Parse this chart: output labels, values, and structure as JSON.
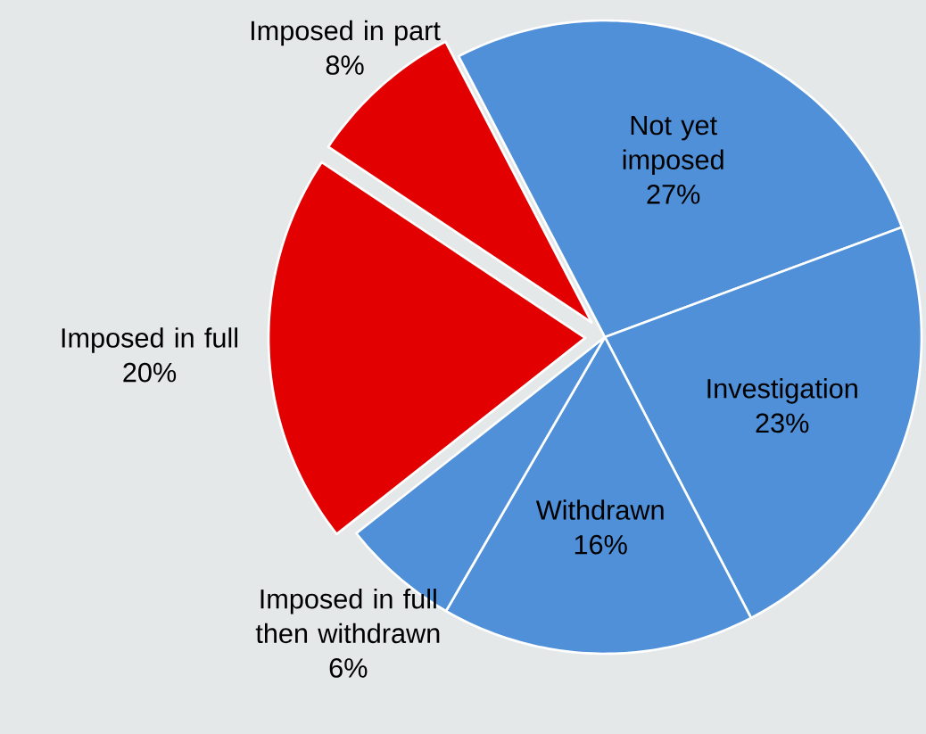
{
  "chart_data": {
    "type": "pie",
    "categories": [
      "Not yet imposed",
      "Investigation",
      "Withdrawn",
      "Imposed in full then withdrawn",
      "Imposed in full",
      "Imposed in part"
    ],
    "values": [
      27,
      23,
      16,
      6,
      20,
      8
    ],
    "value_labels": [
      "27%",
      "23%",
      "16%",
      "6%",
      "20%",
      "8%"
    ],
    "colors": [
      "#4f90d9",
      "#4f90d9",
      "#4f90d9",
      "#4f90d9",
      "#e30000",
      "#e30000"
    ]
  }
}
